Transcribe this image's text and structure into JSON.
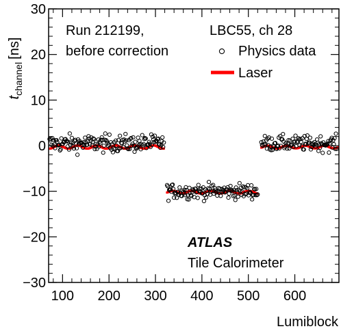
{
  "chart_data": {
    "type": "scatter",
    "xlabel": "Lumiblock",
    "ylabel_main": "t",
    "ylabel_sub": "channel",
    "ylabel_unit": "[ns]",
    "xlim": [
      70,
      695
    ],
    "ylim": [
      -30,
      30
    ],
    "x_ticks": [
      100,
      200,
      300,
      400,
      500,
      600
    ],
    "y_ticks": [
      -30,
      -20,
      -10,
      0,
      10,
      20,
      30
    ],
    "x_tick_labels": [
      "100",
      "200",
      "300",
      "400",
      "500",
      "600"
    ],
    "y_tick_labels": [
      "−30",
      "−20",
      "−10",
      "0",
      "10",
      "20",
      "30"
    ],
    "grid": false,
    "legend_position": "top-right",
    "annotations": {
      "run": "Run 212199,",
      "state": "before correction",
      "channel": "LBC55, ch 28",
      "experiment": "ATLAS",
      "detector": "Tile Calorimeter"
    },
    "series": [
      {
        "name": "Physics data",
        "marker": "open-circle",
        "color": "#000000",
        "segments": [
          {
            "x_start": 72,
            "x_end": 318,
            "mean": 0.5,
            "spread": 1.6
          },
          {
            "x_start": 325,
            "x_end": 520,
            "mean": -10.0,
            "spread": 1.4
          },
          {
            "x_start": 528,
            "x_end": 695,
            "mean": 0.5,
            "spread": 1.4
          }
        ]
      },
      {
        "name": "Laser",
        "marker": "filled-square",
        "color": "#ff0000",
        "segments": [
          {
            "x_start": 72,
            "x_end": 318,
            "mean": -0.3,
            "spread": 0.35
          },
          {
            "x_start": 325,
            "x_end": 520,
            "mean": -10.2,
            "spread": 0.3
          },
          {
            "x_start": 528,
            "x_end": 695,
            "mean": -0.3,
            "spread": 0.3
          }
        ]
      }
    ]
  }
}
